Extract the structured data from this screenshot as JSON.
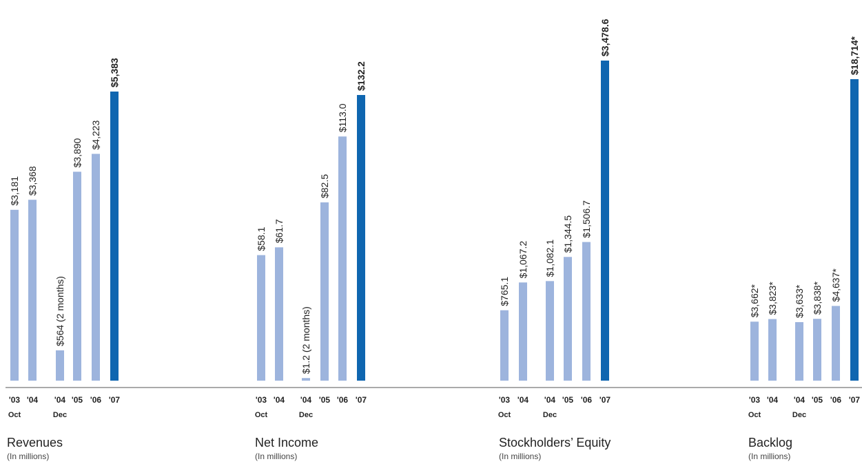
{
  "colors": {
    "light_bar": "#9db4dd",
    "dark_bar": "#0f66b0",
    "axis": "#555555",
    "text": "#222222"
  },
  "chart_data": [
    {
      "type": "bar",
      "title": "Revenues",
      "subtitle": "(In millions)",
      "categories": [
        "'03",
        "'04",
        "'04",
        "'05",
        "'06",
        "'07"
      ],
      "period_labels": [
        "Oct",
        "",
        "Dec",
        "",
        "",
        ""
      ],
      "values": [
        3181,
        3368,
        564,
        3890,
        4223,
        5383
      ],
      "value_labels": [
        "$3,181",
        "$3,368",
        "$564  (2 months)",
        "$3,890",
        "$4,223",
        "$5,383"
      ],
      "highlight_last": true
    },
    {
      "type": "bar",
      "title": "Net Income",
      "subtitle": "(In millions)",
      "categories": [
        "'03",
        "'04",
        "'04",
        "'05",
        "'06",
        "'07"
      ],
      "period_labels": [
        "Oct",
        "",
        "Dec",
        "",
        "",
        ""
      ],
      "values": [
        58.1,
        61.7,
        1.2,
        82.5,
        113.0,
        132.2
      ],
      "value_labels": [
        "$58.1",
        "$61.7",
        "$1.2  (2 months)",
        "$82.5",
        "$113.0",
        "$132.2"
      ],
      "highlight_last": true
    },
    {
      "type": "bar",
      "title": "Stockholders’ Equity",
      "subtitle": "(In millions)",
      "categories": [
        "'03",
        "'04",
        "'04",
        "'05",
        "'06",
        "'07"
      ],
      "period_labels": [
        "Oct",
        "",
        "Dec",
        "",
        "",
        ""
      ],
      "values": [
        765.1,
        1067.2,
        1082.1,
        1344.5,
        1506.7,
        3478.6
      ],
      "value_labels": [
        "$765.1",
        "$1,067.2",
        "$1,082.1",
        "$1,344.5",
        "$1,506.7",
        "$3,478.6"
      ],
      "highlight_last": true
    },
    {
      "type": "bar",
      "title": "Backlog",
      "subtitle": "(In millions)",
      "categories": [
        "'03",
        "'04",
        "'04",
        "'05",
        "'06",
        "'07"
      ],
      "period_labels": [
        "Oct",
        "",
        "Dec",
        "",
        "",
        ""
      ],
      "values": [
        3662,
        3823,
        3633,
        3838,
        4637,
        18714
      ],
      "value_labels": [
        "$3,662*",
        "$3,823*",
        "$3,633*",
        "$3,838*",
        "$4,637*",
        "$18,714*"
      ],
      "highlight_last": true
    }
  ]
}
